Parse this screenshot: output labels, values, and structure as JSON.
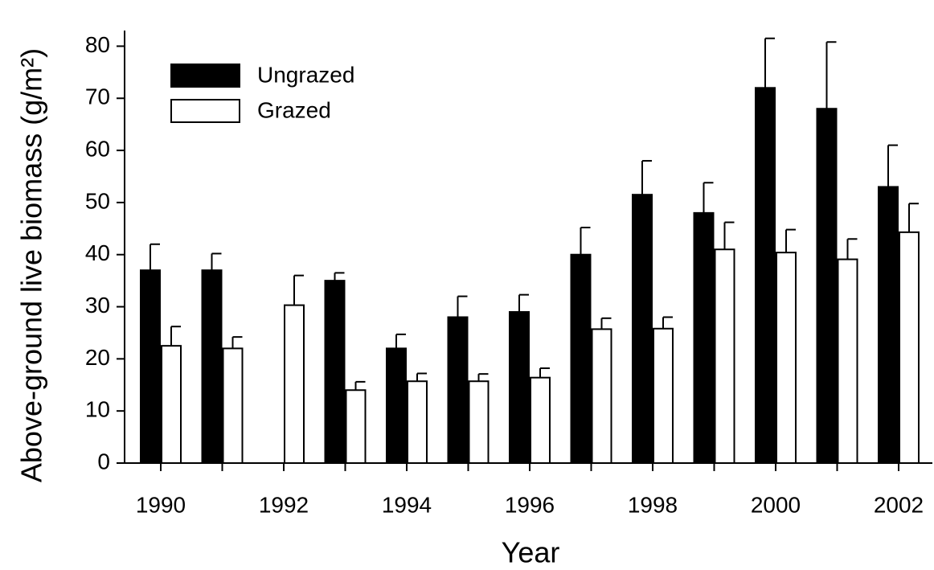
{
  "chart_data": {
    "type": "bar",
    "x_label": "Year",
    "y_label": "Above-ground live biomass (g/m²)",
    "categories": [
      "1990",
      null,
      "1992",
      null,
      "1994",
      null,
      "1996",
      null,
      "1998",
      null,
      "2000",
      null,
      "2002"
    ],
    "series": [
      {
        "name": "Ungrazed",
        "color": "#000000",
        "values": [
          37,
          37,
          null,
          35,
          22,
          28,
          29,
          40,
          51.5,
          48,
          72,
          68,
          53
        ],
        "errors": [
          5,
          3.2,
          null,
          1.5,
          2.7,
          4,
          3.3,
          5.2,
          6.5,
          5.8,
          9.5,
          12.8,
          8
        ]
      },
      {
        "name": "Grazed",
        "color": "#ffffff",
        "values": [
          22.5,
          22,
          30.3,
          14,
          15.7,
          15.7,
          16.4,
          25.7,
          25.8,
          41,
          40.4,
          39.1,
          44.3
        ],
        "errors": [
          3.7,
          2.2,
          5.7,
          1.6,
          1.5,
          1.4,
          1.8,
          2.1,
          2.2,
          5.2,
          4.4,
          3.9,
          5.5
        ]
      }
    ],
    "ylim": [
      0,
      83
    ],
    "yticks": [
      0,
      10,
      20,
      30,
      40,
      50,
      60,
      70,
      80
    ],
    "legend": "upper left",
    "grid": false
  }
}
